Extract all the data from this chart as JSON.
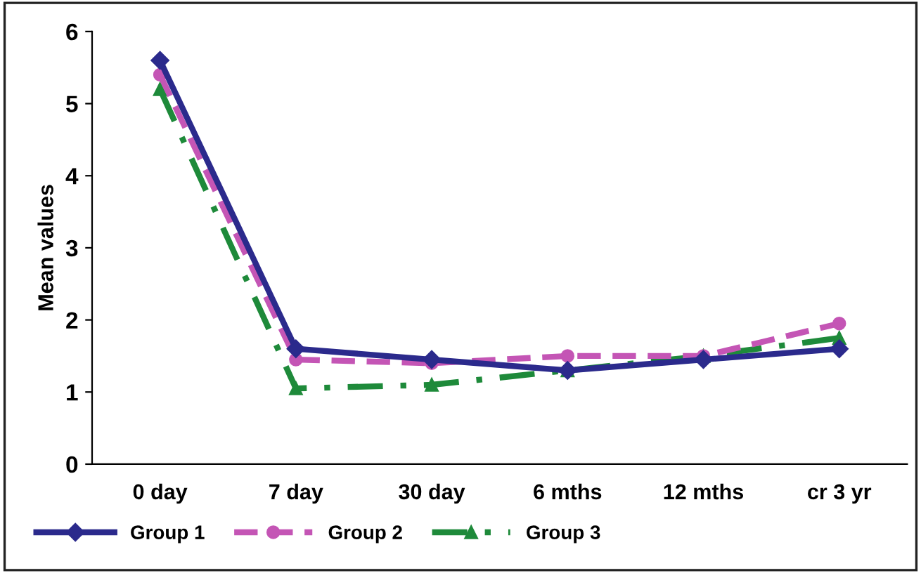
{
  "chart_data": {
    "type": "line",
    "ylabel": "Mean values",
    "categories": [
      "0 day",
      "7 day",
      "30 day",
      "6 mths",
      "12 mths",
      "cr 3 yr"
    ],
    "series": [
      {
        "name": "Group 1",
        "color": "#2b2a8c",
        "values": [
          5.6,
          1.6,
          1.45,
          1.3,
          1.45,
          1.6
        ],
        "marker": "diamond",
        "line_style": "solid"
      },
      {
        "name": "Group 2",
        "color": "#c455b5",
        "values": [
          5.4,
          1.45,
          1.4,
          1.5,
          1.5,
          1.95
        ],
        "marker": "circle",
        "line_style": "dashed"
      },
      {
        "name": "Group 3",
        "color": "#1e8a3a",
        "values": [
          5.2,
          1.05,
          1.1,
          1.3,
          1.5,
          1.75
        ],
        "marker": "triangle",
        "line_style": "dashdot"
      }
    ],
    "ylim": [
      0,
      6
    ],
    "yticks": [
      0,
      1,
      2,
      3,
      4,
      5,
      6
    ],
    "grid": false,
    "legend": "bottom left"
  }
}
